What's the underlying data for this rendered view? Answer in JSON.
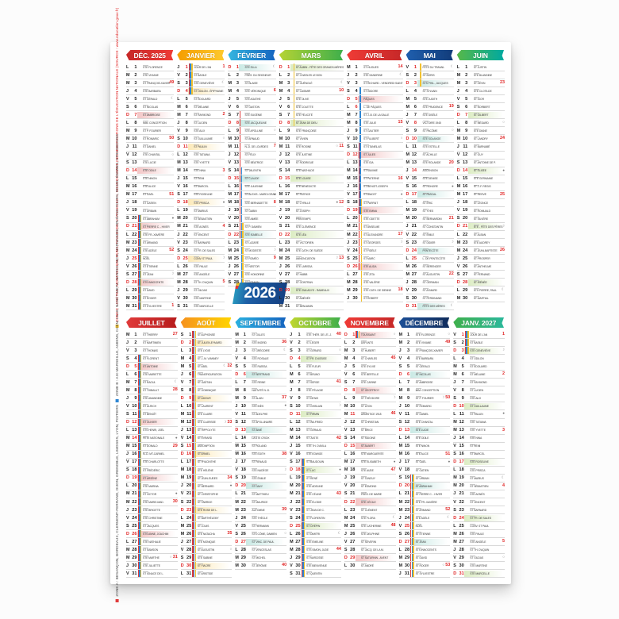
{
  "year_badge": "2026",
  "zones": {
    "A": "#e03a3a",
    "B": "#2e86d3",
    "C": "#f2c12e"
  },
  "legend": {
    "zone_c_square": "■",
    "zone_c_text": "ZONE C : CRÉTEIL, MONTPELLIER, PARIS, TOULOUSE, VERSAILLES",
    "reserve_text": " — SOUS RÉSERVE DES MODIFICATIONS DE L'ÉDUCATION NATIONALE (SOURCE : www.education.gouv.fr)",
    "zone_a_square": "■",
    "zone_a_text": "ZONE A : BESANÇON, BORDEAUX, CLERMONT-FERRAND, DIJON, GRENOBLE, LIMOGES, LYON, POITIERS ",
    "zone_b_square": "■",
    "zone_b_text": "ZONE B : AIX-MARSEILLE, AMIENS, CAEN, LILLE, NANCY-METZ, NANTES, NICE, NORMANDIE, ORLÉANS-TOURS, REIMS, RENNES, STRASBOURG"
  },
  "months": [
    {
      "id": "dec-2025",
      "label": "DÉC. 2025",
      "head": [
        "#c62828",
        "#ef3b36"
      ],
      "band": "#f3c5c5",
      "start": 0,
      "ferie": [
        25
      ],
      "weeks": {
        "3": 49,
        "10": 50,
        "17": 51,
        "24": 52,
        "31": 1
      },
      "moons": {
        "5": "☾",
        "12": "○",
        "20": "●",
        "27": "☽"
      },
      "bars": [
        [
          20,
          31,
          "ABC"
        ]
      ],
      "days": [
        "STE FLORENCE",
        "STE VIVIANE",
        "ST FRANÇOIS-XAVIER",
        "STE BARBARA",
        "ST GÉRALD",
        "ST NICOLAS",
        "ST AMBROISE",
        "IMM. CONCEPTION",
        "ST P. FOURIER",
        "ST ROMARIC",
        "ST DANIEL",
        "STE CHANTAL",
        "STE LUCIE",
        "STE ODILE",
        "STE NINON",
        "STE ALICE",
        "ST GAËL",
        "ST GATIEN",
        "ST URBAIN",
        "ST ABRAHAM",
        "ST PIERRE C. - HIVER",
        "STE FR.-XAVIÈRE",
        "ST ARMAND",
        "STE ADÈLE",
        "NOËL",
        "ST ÉTIENNE",
        "ST JEAN",
        "STS INNOCENTS",
        "ST DAVID",
        "ST ROGER",
        "ST SYLVESTRE"
      ]
    },
    {
      "id": "janvier",
      "label": "JANVIER",
      "head": [
        "#f59d00",
        "#fdc92e"
      ],
      "band": "#fce9b8",
      "start": 3,
      "ferie": [
        1
      ],
      "weeks": {
        "1": 1,
        "7": 2,
        "14": 3,
        "21": 4,
        "28": 5
      },
      "moons": {
        "3": "☾",
        "10": "○",
        "18": "●",
        "25": "☽"
      },
      "bars": [
        [
          1,
          4,
          "ABC"
        ]
      ],
      "days": [
        "JOUR DE L'AN",
        "ST BASILE",
        "STE GENEVIÈVE",
        "ST ODILON - ÉPIPHANIE",
        "ST ÉDOUARD",
        "ST MÉLAINE",
        "ST RAYMOND",
        "ST LUCIEN",
        "STE ALIX",
        "ST GUILLAUME",
        "ST PAULIN",
        "STE TATIANA",
        "STE YVETTE",
        "STE NINA",
        "ST RÉMI",
        "ST MARCEL",
        "STE ROSELINE",
        "STE PRISCA",
        "ST MARIUS",
        "ST SÉBASTIEN",
        "STE AGNÈS",
        "ST VINCENT",
        "ST BARNARD",
        "ST FR. DE SALES",
        "CONV. ST PAUL",
        "STE PAULE",
        "STE ANGÈLE",
        "ST TH. D'AQUIN",
        "ST GILDAS",
        "STE MARTINE",
        "STE MARCELLE"
      ]
    },
    {
      "id": "fevrier",
      "label": "FÉVRIER",
      "head": [
        "#35b6e0",
        "#1565c0"
      ],
      "band": "#c9e9e4",
      "start": 6,
      "ferie": [],
      "weeks": {
        "4": 6,
        "11": 7,
        "18": 8,
        "25": 9
      },
      "moons": {
        "1": "☾",
        "9": "○",
        "17": "●",
        "24": "☽"
      },
      "bars": [
        [
          7,
          22,
          "A"
        ],
        [
          14,
          28,
          "B"
        ],
        [
          21,
          28,
          "C"
        ]
      ],
      "days": [
        "STE ELLA",
        "PRÉS. DU SEIGNEUR",
        "ST BLAISE",
        "STE VÉRONIQUE",
        "STE AGATHE",
        "ST GASTON",
        "STE EUGÉNIE",
        "STE JACQUELINE",
        "STE APOLLINE",
        "ST ARNAUD",
        "N.-D. DE LOURDES",
        "ST FÉLIX",
        "STE BÉATRICE",
        "ST VALENTIN",
        "ST CLAUDE",
        "STE JULIENNE",
        "ST ALEXIS - MARDI GRAS",
        "STE BERNADETTE",
        "ST GABIN",
        "STE AIMÉE",
        "ST P. DAMIEN",
        "STE ISABELLE",
        "ST LAZARE",
        "ST MODESTE",
        "ST ROMÉO",
        "ST NESTOR",
        "STE HONORINE",
        "ST ROMAIN"
      ]
    },
    {
      "id": "mars",
      "label": "MARS",
      "head": [
        "#b5d334",
        "#3faf4b"
      ],
      "band": "#dcecc3",
      "start": 6,
      "ferie": [],
      "weeks": {
        "4": 10,
        "11": 11,
        "18": 12,
        "25": 13
      },
      "moons": {
        "3": "☾",
        "11": "○",
        "18": "●",
        "25": "☽"
      },
      "bars": [
        [
          1,
          8,
          "C"
        ]
      ],
      "days": [
        "ST AUBIN - FÊTE DES GRANDS-MÈRES",
        "ST CHARLES LE BON",
        "ST GUÉNOLÉ",
        "ST CASIMIR",
        "STE OLIVE",
        "STE COLETTE",
        "STE FÉLICITÉ",
        "ST JEAN DE DIEU",
        "STE FRANÇOISE",
        "ST VIVIEN",
        "STE ROSINE",
        "STE JUSTINE",
        "ST RODRIGUE",
        "STE MATHILDE",
        "STE LOUISE",
        "STE BÉNÉDICTE",
        "ST PATRICE",
        "ST CYRILLE",
        "ST JOSEPH",
        "PRINTEMPS",
        "STE CLÉMENCE",
        "STE LÉA",
        "ST VICTORIEN",
        "STE CATH. DE SUÈDE",
        "ANNONCIATION",
        "STE LARISSA",
        "ST HABIB",
        "ST GONTRAN",
        "STE GWLADYS - RAMEAUX",
        "ST AMÉDÉE",
        "ST BENJAMIN"
      ]
    },
    {
      "id": "avril",
      "label": "AVRIL",
      "head": [
        "#ef3b36",
        "#c62828"
      ],
      "band": "#f3c5c5",
      "start": 2,
      "ferie": [
        5,
        6
      ],
      "weeks": {
        "1": 14,
        "8": 15,
        "15": 16,
        "22": 17,
        "29": 18
      },
      "moons": {
        "2": "☾",
        "10": "○",
        "17": "●",
        "23": "☽"
      },
      "bars": [
        [
          4,
          19,
          "B"
        ],
        [
          11,
          26,
          "A"
        ],
        [
          18,
          30,
          "C"
        ]
      ],
      "days": [
        "ST HUGUES",
        "STE SANDRINE",
        "ST RICHARD - VENDREDI SAINT",
        "ST ISIDORE",
        "PÂQUES",
        "L. DE PÂQUES",
        "ST J.-B. DE LA SALLE",
        "STE JULIE",
        "ST GAUTIER",
        "ST FULBERT",
        "ST STANISLAS",
        "ST JULES",
        "STE IDA",
        "ST MAXIME",
        "ST PATERNE",
        "ST BENOÎT-JOSEPH",
        "ST ANICET",
        "ST PARFAIT",
        "STE EMMA",
        "STE ODETTE",
        "ST ANSELME",
        "ST ALEXANDRE",
        "ST GEORGES",
        "ST FIDÈLE",
        "ST MARC",
        "STE ALIDA",
        "STE ZITA",
        "STE VALÉRIE",
        "STE CATH. DE SIENNE",
        "ST ROBERT"
      ]
    },
    {
      "id": "mai",
      "label": "MAI",
      "head": [
        "#1f5fae",
        "#123c7a"
      ],
      "band": "#c9e9e4",
      "start": 4,
      "ferie": [
        1,
        8,
        14,
        25
      ],
      "weeks": {
        "6": 19,
        "13": 20,
        "20": 21,
        "27": 22
      },
      "moons": {
        "1": "☾",
        "9": "○",
        "16": "●",
        "23": "☽",
        "31": "☾"
      },
      "bars": [
        [
          1,
          3,
          "C"
        ]
      ],
      "days": [
        "FÊTE DU TRAVAIL",
        "ST BORIS",
        "STS PHIL., JACQUES",
        "ST SYLVAIN",
        "STE JUDITH",
        "STE PRUDENCE",
        "STE GISÈLE",
        "VICTOIRE 1945",
        "ST PACÔME",
        "STE SOLANGE",
        "STE ESTELLE",
        "ST ACHILLE",
        "STE ROLANDE",
        "ASCENSION",
        "STE DENISE",
        "ST HONORÉ",
        "ST PASCAL",
        "ST ÉRIC",
        "ST YVES",
        "ST BERNARDIN",
        "ST CONSTANTIN",
        "ST ÉMILE",
        "ST DIDIER",
        "PENTECÔTE",
        "L. DE PENTECÔTE",
        "ST BÉRENGER",
        "ST AUGUSTIN",
        "ST GERMAIN",
        "ST AYMARD",
        "ST FERDINAND",
        "FÊTE DES MÈRES"
      ]
    },
    {
      "id": "juin",
      "label": "JUIN",
      "head": [
        "#56b849",
        "#00a9a0"
      ],
      "band": "#dcecc3",
      "start": 0,
      "ferie": [],
      "weeks": {
        "3": 23,
        "10": 24,
        "17": 25,
        "24": 26
      },
      "moons": {
        "8": "○",
        "14": "●",
        "21": "☽",
        "29": "☾"
      },
      "bars": [],
      "days": [
        "ST JUSTIN",
        "STE BLANDINE",
        "ST KÉVIN",
        "STE CLOTILDE",
        "ST IGOR",
        "ST NORBERT",
        "ST GILBERT",
        "ST MÉDARD",
        "STE DIANE",
        "ST LANDRY",
        "ST BARNABÉ",
        "ST GUY",
        "ST ANTOINE DE P.",
        "ST ÉLISÉE",
        "STE GERMAINE",
        "ST J.-F. RÉGIS",
        "ST HERVÉ",
        "ST LÉONCE",
        "ST ROMUALD",
        "ST SILVÈRE",
        "ÉTÉ - FÊTE DES PÈRES",
        "ST ALBAN",
        "STE AUDREY",
        "ST JEAN-BAPTISTE",
        "ST PROSPER",
        "ST ANTHELME",
        "ST FERNAND",
        "ST IRÉNÉE",
        "STS PIERRE, PAUL",
        "ST MARTIAL"
      ]
    },
    {
      "id": "juillet",
      "label": "JUILLET",
      "head": [
        "#e03a3a",
        "#b71c1c"
      ],
      "band": "#f3c5c5",
      "start": 2,
      "ferie": [
        14
      ],
      "weeks": {
        "1": 27,
        "8": 28,
        "15": 29,
        "22": 30,
        "29": 31
      },
      "moons": {
        "7": "☾",
        "14": "●",
        "21": "●",
        "29": "○"
      },
      "bars": [
        [
          4,
          31,
          "ABC"
        ]
      ],
      "days": [
        "ST THIERRY",
        "ST MARTINIEN",
        "ST THOMAS",
        "ST FLORENT",
        "ST ANTOINE",
        "STE MARIETTE",
        "ST RAOUL",
        "ST THIBAULT",
        "STE AMANDINE",
        "ST ULRICH",
        "ST BENOÎT",
        "ST OLIVIER",
        "STS HENRI, JOËL",
        "FÊTE NATIONALE",
        "ST DONALD",
        "N.-D. MT-CARMEL",
        "STE CHARLOTTE",
        "ST FRÉDÉRIC",
        "ST ARSÈNE",
        "STE MARINA",
        "ST VICTOR",
        "STE MARIE-MAD.",
        "STE BRIGITTE",
        "STE CHRISTINE",
        "ST JACQUES",
        "STS ANNE, JOACHIM",
        "STE NATHALIE",
        "ST SAMSON",
        "STE MARTHE",
        "STE JULIETTE",
        "ST IGNACE DE L."
      ]
    },
    {
      "id": "aout",
      "label": "AOÛT",
      "head": [
        "#f6921e",
        "#ffd400"
      ],
      "band": "#fce9b8",
      "start": 5,
      "ferie": [
        15
      ],
      "weeks": {
        "5": 32,
        "12": 33,
        "19": 34,
        "26": 35
      },
      "moons": {
        "5": "☾",
        "12": "☽",
        "20": "●",
        "28": "○"
      },
      "bars": [
        [
          1,
          31,
          "ABC"
        ]
      ],
      "days": [
        "ST ALPHONSE",
        "ST JULIEN-EYMARD",
        "STE LYDIE",
        "ST J.-M. VIANNEY",
        "ST ABEL",
        "TRANSFIGURATION",
        "ST GAÉTAN",
        "ST DOMINIQUE",
        "ST AMOUR",
        "ST LAURENT",
        "STE CLAIRE",
        "STE CLARISSE",
        "ST HIPPOLYTE",
        "ST ÉVRARD",
        "ASSOMPTION",
        "ST ARMEL",
        "ST HYACINTHE",
        "STE HÉLÈNE",
        "ST JEAN-EUDES",
        "ST BERNARD",
        "ST CHRISTOPHE",
        "ST FABRICE",
        "STE ROSE DE L.",
        "ST BARTHÉLEMY",
        "ST LOUIS",
        "STE NATACHA",
        "STE MONIQUE",
        "ST AUGUSTIN",
        "STE SABINE",
        "ST FIACRE",
        "ST ARISTIDE"
      ]
    },
    {
      "id": "septembre",
      "label": "SEPTEMBRE",
      "head": [
        "#2bb1e0",
        "#1565c0"
      ],
      "band": "#c9e9e4",
      "start": 1,
      "ferie": [],
      "weeks": {
        "2": 36,
        "9": 37,
        "16": 38,
        "23": 39,
        "30": 40
      },
      "moons": {
        "3": "☾",
        "10": "●",
        "18": "☽",
        "26": "○"
      },
      "bars": [],
      "days": [
        "ST GILLES",
        "STE INGRID",
        "ST GRÉGOIRE",
        "STE ROSALIE",
        "STE RAÏSSA",
        "ST BERTRAND",
        "STE REINE",
        "NATIVITÉ N.-D.",
        "ST ALAIN",
        "STE INÈS",
        "ST ADELPHE",
        "ST APOLLINAIRE",
        "ST AIMÉ",
        "LA STE CROIX",
        "ST ROLAND",
        "STE ÉDITH",
        "ST RENAUD",
        "STE NADÈGE",
        "STE ÉMILIE",
        "ST DAVY",
        "ST MATTHIEU",
        "ST MAURICE",
        "AUTOMNE",
        "STE THÈCLE",
        "ST HERMANN",
        "STS CÔME, DAMIEN",
        "ST VINC. DE PAUL",
        "ST VENCESLAS",
        "ST MICHEL",
        "ST JÉRÔME"
      ]
    },
    {
      "id": "octobre",
      "label": "OCTOBRE",
      "head": [
        "#c1d72f",
        "#3faf4b"
      ],
      "band": "#dcecc3",
      "start": 3,
      "ferie": [],
      "weeks": {
        "1": 40,
        "7": 41,
        "14": 42,
        "21": 43,
        "28": 44
      },
      "moons": {
        "3": "○",
        "10": "☽",
        "18": "●",
        "26": "☾"
      },
      "bars": [
        [
          17,
          31,
          "ABC"
        ]
      ],
      "days": [
        "STE THÉR. DE L'E.-J.",
        "ST LÉGER",
        "ST GÉRARD",
        "ST FR. D'ASSISE",
        "STE FLEUR",
        "ST BRUNO",
        "ST SERGE",
        "STE PÉLAGIE",
        "ST DENIS",
        "ST GHISLAIN",
        "ST FIRMIN",
        "ST WILFRIED",
        "ST GÉRAUD",
        "ST JUSTE",
        "STE TH. D'AVILA",
        "STE EDWIGE",
        "ST BAUDOUIN",
        "ST LUC",
        "ST RENÉ",
        "STE ADELINE",
        "STE CÉLINE",
        "STE ÉLODIE",
        "ST JEAN DE C.",
        "ST FLORENTIN",
        "ST CRÉPIN",
        "ST DIMITRI",
        "STE ÉMELINE",
        "STS SIMON, JUDE",
        "ST NARCISSE",
        "STE BIENVENUE",
        "ST QUENTIN"
      ]
    },
    {
      "id": "novembre",
      "label": "NOVEMBRE",
      "head": [
        "#ef3b36",
        "#c62828"
      ],
      "band": "#f3c5c5",
      "start": 6,
      "ferie": [
        1,
        11
      ],
      "weeks": {
        "4": 45,
        "11": 46,
        "18": 47,
        "25": 48
      },
      "moons": {
        "1": "○",
        "9": "☽",
        "17": "●",
        "24": "☾"
      },
      "bars": [
        [
          1,
          1,
          "ABC"
        ]
      ],
      "days": [
        "TOUSSAINT",
        "DÉFUNTS",
        "ST HUBERT",
        "ST CHARLES",
        "STE SYLVIE",
        "STE BERTILLE",
        "STE CARINE",
        "ST GEOFFROY",
        "ST THÉODORE",
        "ST LÉON",
        "ARMISTICE 1918",
        "ST CHRISTIAN",
        "ST BRICE",
        "ST SIDOINE",
        "ST ALBERT",
        "STE MARGUERITE",
        "STE ÉLISABETH",
        "STE AUDE",
        "ST TANGUY",
        "ST EDMOND",
        "PRÉS. DE MARIE",
        "STE CÉCILE",
        "ST CLÉMENT",
        "STE FLORA",
        "STE CATHERINE",
        "STE DELPHINE",
        "ST SÉVERIN",
        "ST JACQ. DE LA M.",
        "ST SATURNIN - AVENT",
        "ST ANDRÉ"
      ]
    },
    {
      "id": "decembre",
      "label": "DÉCEMBRE",
      "head": [
        "#1c4f96",
        "#102c5c"
      ],
      "band": "#c9e9e4",
      "start": 1,
      "ferie": [
        25
      ],
      "weeks": {
        "2": 49,
        "9": 50,
        "16": 51,
        "23": 52,
        "30": 53
      },
      "moons": {
        "1": "○",
        "9": "☽",
        "17": "●",
        "24": "☾",
        "30": "○"
      },
      "bars": [
        [
          19,
          31,
          "ABC"
        ]
      ],
      "days": [
        "STE FLORENCE",
        "STE VIVIANE",
        "ST FRANÇOIS-XAVIER",
        "STE BARBARA",
        "ST GÉRALD",
        "ST NICOLAS",
        "ST AMBROISE",
        "IMM. CONCEPTION",
        "ST P. FOURIER",
        "ST ROMARIC",
        "ST DANIEL",
        "STE CHANTAL",
        "STE LUCIE",
        "STE ODILE",
        "STE NINON",
        "STE ALICE",
        "ST GAËL",
        "ST GATIEN",
        "ST URBAIN",
        "ST ABRAHAM",
        "ST PIERRE C. - HIVER",
        "STE FR.-XAVIÈRE",
        "ST ARMAND",
        "STE ADÈLE",
        "NOËL",
        "ST ÉTIENNE",
        "ST JEAN",
        "STS INNOCENTS",
        "ST DAVID",
        "ST ROGER",
        "ST SYLVESTRE"
      ]
    },
    {
      "id": "janv-2027",
      "label": "JANV. 2027",
      "head": [
        "#3faf4b",
        "#2bb89b"
      ],
      "band": "#dcecc3",
      "start": 4,
      "ferie": [
        1
      ],
      "weeks": {
        "1": 1,
        "6": 2,
        "13": 3,
        "20": 4,
        "27": 5
      },
      "moons": {
        "3": "☽",
        "11": "●",
        "19": "☾",
        "29": "○"
      },
      "bars": [
        [
          1,
          3,
          "ABC"
        ]
      ],
      "days": [
        "JOUR DE L'AN",
        "ST BASILE",
        "STE GENEVIÈVE",
        "ST ODILON",
        "ST ÉDOUARD",
        "ST MÉLAINE",
        "ST RAYMOND",
        "ST LUCIEN",
        "STE ALIX",
        "ST GUILLAUME",
        "ST PAULIN",
        "STE TATIANA",
        "STE YVETTE",
        "STE NINA",
        "ST RÉMI",
        "ST MARCEL",
        "STE ROSELINE",
        "STE PRISCA",
        "ST MARIUS",
        "ST SÉBASTIEN",
        "STE AGNÈS",
        "ST VINCENT",
        "ST BARNARD",
        "ST FR. DE SALES",
        "CONV. ST PAUL",
        "STE PAULE",
        "STE ANGÈLE",
        "ST TH. D'AQUIN",
        "ST GILDAS",
        "STE MARTINE",
        "STE MARCELLE"
      ]
    }
  ]
}
